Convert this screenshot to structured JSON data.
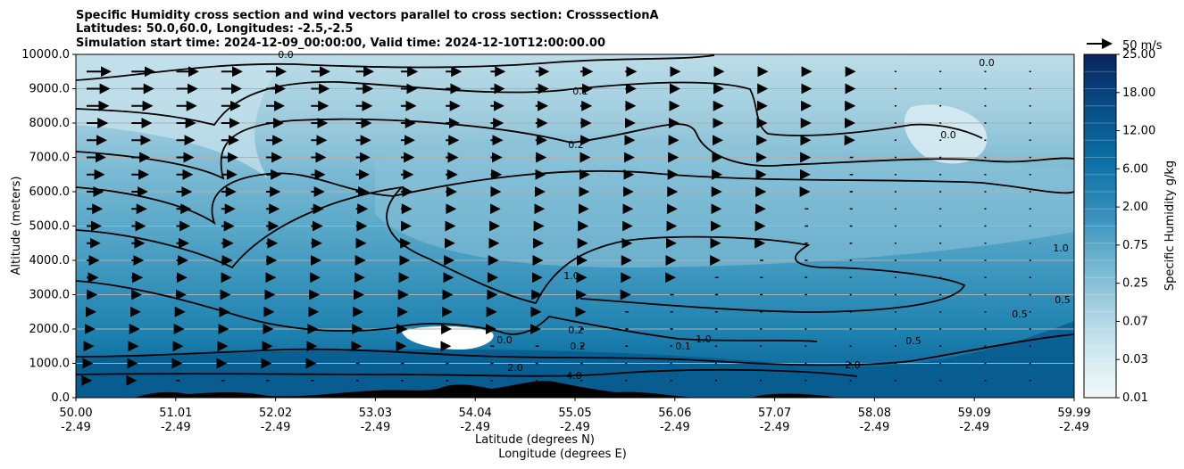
{
  "chart_data": {
    "type": "contour",
    "title_lines": [
      "Specific Humidity cross section and wind vectors parallel to cross section: CrosssectionA",
      "Latitudes: 50.0,60.0, Longitudes: -2.5,-2.5",
      "Simulation start time: 2024-12-09_00:00:00, Valid time: 2024-12-10T12:00:00.00"
    ],
    "ylabel": "Altitude (meters)",
    "xlabel_lines": [
      "Latitude (degrees N)",
      "Longitude (degrees E)"
    ],
    "y_ticks": [
      "0.0",
      "1000.0",
      "2000.0",
      "3000.0",
      "4000.0",
      "5000.0",
      "6000.0",
      "7000.0",
      "8000.0",
      "9000.0",
      "10000.0"
    ],
    "ylim": [
      0,
      10000
    ],
    "x_ticks": [
      {
        "lat": "50.00",
        "lon": "-2.49"
      },
      {
        "lat": "51.01",
        "lon": "-2.49"
      },
      {
        "lat": "52.02",
        "lon": "-2.49"
      },
      {
        "lat": "53.03",
        "lon": "-2.49"
      },
      {
        "lat": "54.04",
        "lon": "-2.49"
      },
      {
        "lat": "55.05",
        "lon": "-2.49"
      },
      {
        "lat": "56.06",
        "lon": "-2.49"
      },
      {
        "lat": "57.07",
        "lon": "-2.49"
      },
      {
        "lat": "58.08",
        "lon": "-2.49"
      },
      {
        "lat": "59.09",
        "lon": "-2.49"
      },
      {
        "lat": "59.99",
        "lon": "-2.49"
      }
    ],
    "colorbar": {
      "label": "Specific Humidity g/kg",
      "tick_labels": [
        "0.01",
        "0.03",
        "0.07",
        "0.25",
        "0.75",
        "2.00",
        "6.00",
        "12.00",
        "18.00",
        "25.00"
      ],
      "levels": 20
    },
    "quiver_key": "50 m/s",
    "contour_labels": [
      "0.0",
      "0.1",
      "0.2",
      "0.0",
      "1.0",
      "0.2",
      "0.2",
      "2.0",
      "4.0",
      "0.1",
      "1.0",
      "2.0",
      "0.5",
      "0.5",
      "1.0",
      "0.5",
      "0.0",
      "0.0"
    ],
    "grid": "horizontal",
    "colors": {
      "dry": "#e8f4f8",
      "moist": "#005f96",
      "very_moist": "#08306b",
      "terrain": "#000000"
    }
  }
}
